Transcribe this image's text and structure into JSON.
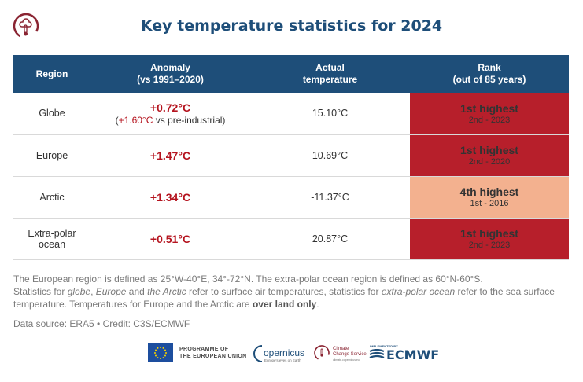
{
  "title": "Key temperature statistics for 2024",
  "table": {
    "headers": {
      "region": "Region",
      "anomaly_line1": "Anomaly",
      "anomaly_line2": "(vs 1991–2020)",
      "actual_line1": "Actual",
      "actual_line2": "temperature",
      "rank_line1": "Rank",
      "rank_line2": "(out of 85 years)"
    },
    "rows": [
      {
        "region": "Globe",
        "anomaly": "+0.72°C",
        "anomaly_sub_open": "(",
        "anomaly_sub_value": "+1.60°C",
        "anomaly_sub_rest": " vs pre-industrial)",
        "actual": "15.10°C",
        "rank": "1st highest",
        "rank_sub": "2nd - 2023",
        "rank_color": "#b71f2b"
      },
      {
        "region": "Europe",
        "anomaly": "+1.47°C",
        "actual": "10.69°C",
        "rank": "1st highest",
        "rank_sub": "2nd - 2020",
        "rank_color": "#b71f2b"
      },
      {
        "region": "Arctic",
        "anomaly": "+1.34°C",
        "actual": "-11.37°C",
        "rank": "4th highest",
        "rank_sub": "1st - 2016",
        "rank_color": "#f3b18f"
      },
      {
        "region": "Extra-polar ocean",
        "anomaly": "+0.51°C",
        "actual": "20.87°C",
        "rank": "1st highest",
        "rank_sub": "2nd - 2023",
        "rank_color": "#b71f2b"
      }
    ]
  },
  "notes": {
    "line1": "The European region is defined as 25°W-40°E, 34°-72°N. The extra-polar ocean region is defined as 60°N-60°S.",
    "p1": "Statistics for ",
    "globe": "globe",
    "p2": ", ",
    "europe": "Europe",
    "p3": " and ",
    "arctic": "the Arctic",
    "p4": " refer to surface air temperatures, statistics for ",
    "ocean": "extra-polar ocean",
    "p5": " refer to the sea surface temperature. Temperatures for Europe and the Arctic are ",
    "bold": "over land only",
    "p6": "."
  },
  "source": "Data source: ERA5 • Credit: C3S/ECMWF",
  "footer": {
    "eu_line1": "PROGRAMME OF",
    "eu_line2": "THE EUROPEAN UNION",
    "copernicus": "opernicus",
    "copernicus_tag": "Europe's eyes on Earth",
    "c3s_line1": "Climate",
    "c3s_line2": "Change Service",
    "c3s_tag": "climate.copernicus.eu",
    "implemented_by": "IMPLEMENTED BY",
    "ecmwf": "ECMWF"
  },
  "colors": {
    "header_bg": "#1e4e79",
    "anomaly_red": "#b5141f",
    "rank_dark": "#b71f2b",
    "rank_light": "#f3b18f"
  },
  "icons": [
    "c3s-thermometer-logo-icon",
    "eu-flag-icon",
    "copernicus-logo-icon",
    "c3s-logo-icon",
    "ecmwf-logo-icon"
  ]
}
